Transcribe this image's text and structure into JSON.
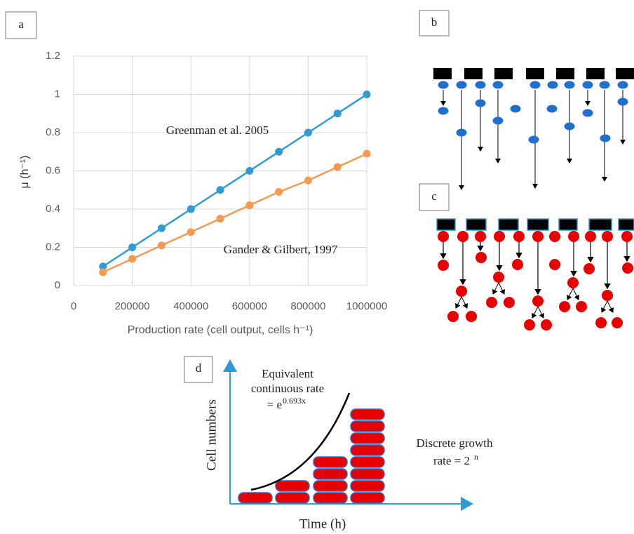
{
  "chart_data": {
    "type": "line",
    "x_label": "Production rate (cell output, cells h⁻¹)",
    "y_label": "μ (h⁻¹)",
    "x": [
      100000,
      200000,
      300000,
      400000,
      500000,
      600000,
      700000,
      800000,
      900000,
      1000000
    ],
    "series": [
      {
        "name": "Greenman et al. 2005",
        "color": "#2e9bd6",
        "values": [
          0.1,
          0.2,
          0.3,
          0.4,
          0.5,
          0.6,
          0.7,
          0.8,
          0.9,
          1
        ]
      },
      {
        "name": "Gander & Gilbert, 1997",
        "color": "#f59a4f",
        "values": [
          0.07,
          0.14,
          0.21,
          0.28,
          0.35,
          0.42,
          0.49,
          0.55,
          0.62,
          0.69
        ]
      }
    ],
    "xlim": [
      0,
      1000000
    ],
    "ylim": [
      0,
      1.2
    ],
    "xticks": [
      0,
      200000,
      400000,
      600000,
      800000,
      1000000
    ],
    "yticks": [
      0,
      0.2,
      0.4,
      0.6,
      0.8,
      1,
      1.2
    ],
    "grid": true
  },
  "panels": {
    "a": "a",
    "b": "b",
    "c": "c",
    "d": "d"
  },
  "diagram_d": {
    "y_label": "Cell numbers",
    "x_label": "Time (h)",
    "continuous_line1": "Equivalent",
    "continuous_line2": "continuous rate",
    "continuous_base": "=  e",
    "continuous_exp": "0.693x",
    "discrete_line1": "Discrete growth",
    "discrete_base": "rate = 2",
    "discrete_exp": "n"
  }
}
